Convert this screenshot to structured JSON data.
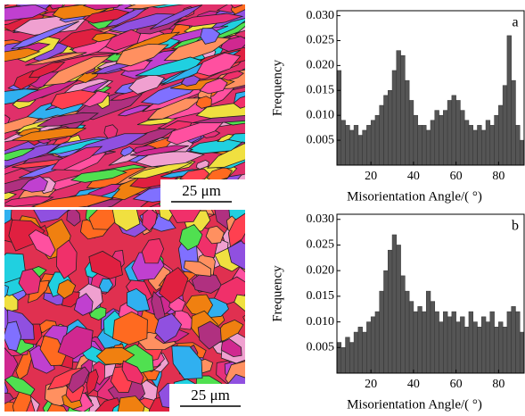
{
  "images": [
    {
      "scale_label": "25 μm"
    },
    {
      "scale_label": "25 μm"
    }
  ],
  "chart_data": [
    {
      "type": "histogram",
      "panel_label": "a",
      "x_label": "Misorientation Angle/( °)",
      "y_label": "Frequency",
      "color": "#555555",
      "bins": [
        4,
        6,
        8,
        10,
        12,
        14,
        16,
        18,
        20,
        22,
        24,
        26,
        28,
        30,
        32,
        34,
        36,
        38,
        40,
        42,
        44,
        46,
        48,
        50,
        52,
        54,
        56,
        58,
        60,
        62,
        64,
        66,
        68,
        70,
        72,
        74,
        76,
        78,
        80,
        82,
        84,
        86,
        88,
        90,
        92
      ],
      "values": [
        0.019,
        0.009,
        0.008,
        0.007,
        0.008,
        0.006,
        0.007,
        0.008,
        0.009,
        0.01,
        0.012,
        0.014,
        0.015,
        0.019,
        0.023,
        0.022,
        0.017,
        0.013,
        0.01,
        0.008,
        0.008,
        0.007,
        0.009,
        0.011,
        0.01,
        0.011,
        0.013,
        0.014,
        0.013,
        0.011,
        0.009,
        0.008,
        0.007,
        0.008,
        0.007,
        0.009,
        0.008,
        0.01,
        0.012,
        0.016,
        0.026,
        0.017,
        0.008,
        0.005
      ],
      "xlim": [
        4,
        92
      ],
      "xticks": [
        20,
        40,
        60,
        80
      ],
      "ylim": [
        0,
        0.031
      ],
      "yticks": [
        0.005,
        {
          "value": 0.01,
          "label": "0.010"
        },
        0.015,
        {
          "value": 0.02,
          "label": "0.020"
        },
        0.025,
        {
          "value": 0.03,
          "label": "0.030"
        }
      ]
    },
    {
      "type": "histogram",
      "panel_label": "b",
      "x_label": "Misorientation Angle/( °)",
      "y_label": "Frequency",
      "color": "#555555",
      "bins": [
        4,
        6,
        8,
        10,
        12,
        14,
        16,
        18,
        20,
        22,
        24,
        26,
        28,
        30,
        32,
        34,
        36,
        38,
        40,
        42,
        44,
        46,
        48,
        50,
        52,
        54,
        56,
        58,
        60,
        62,
        64,
        66,
        68,
        70,
        72,
        74,
        76,
        78,
        80,
        82,
        84,
        86,
        88,
        90,
        92
      ],
      "values": [
        0.006,
        0.005,
        0.007,
        0.006,
        0.008,
        0.009,
        0.008,
        0.01,
        0.011,
        0.012,
        0.016,
        0.02,
        0.024,
        0.027,
        0.025,
        0.019,
        0.016,
        0.014,
        0.012,
        0.013,
        0.012,
        0.016,
        0.014,
        0.012,
        0.01,
        0.012,
        0.011,
        0.012,
        0.01,
        0.011,
        0.009,
        0.012,
        0.01,
        0.009,
        0.011,
        0.01,
        0.012,
        0.009,
        0.01,
        0.009,
        0.012,
        0.013,
        0.012,
        0.008
      ],
      "xlim": [
        4,
        92
      ],
      "xticks": [
        20,
        40,
        60,
        80
      ],
      "ylim": [
        0,
        0.031
      ],
      "yticks": [
        0.005,
        {
          "value": 0.01,
          "label": "0.010"
        },
        0.015,
        {
          "value": 0.02,
          "label": "0.020"
        },
        0.025,
        {
          "value": 0.03,
          "label": "0.030"
        }
      ]
    }
  ]
}
